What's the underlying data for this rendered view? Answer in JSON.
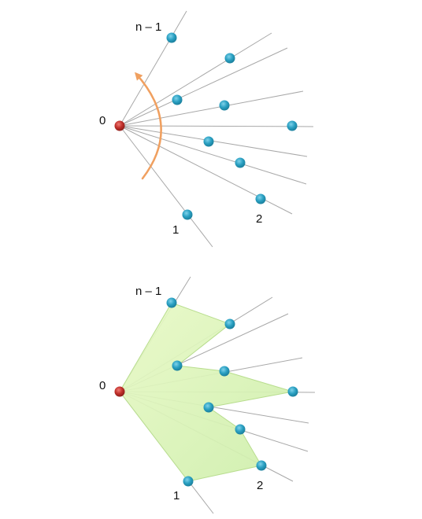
{
  "labels": {
    "origin": "0",
    "first": "1",
    "second": "2",
    "last": "n – 1"
  },
  "colors": {
    "origin_point": "#c0302b",
    "vertex_point": "#2aa0c2",
    "ray": "#a8a8a8",
    "sweep_arrow": "#f0a060",
    "polygon_fill": "#dff5b5",
    "polygon_stroke": "#b8dd8e"
  },
  "icons": {
    "sweep": "curved-arrow-icon"
  }
}
